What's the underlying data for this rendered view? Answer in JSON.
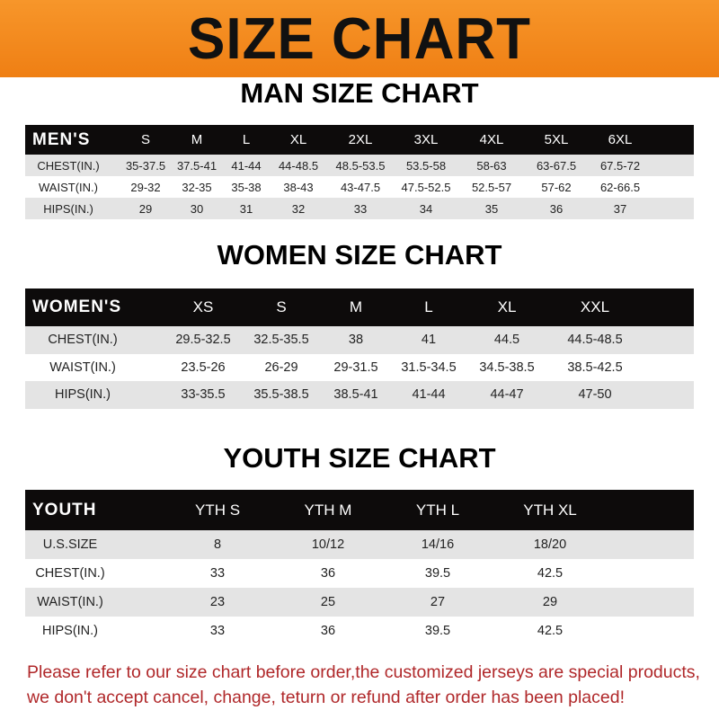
{
  "banner_title": "SIZE CHART",
  "men": {
    "title": "MAN SIZE CHART",
    "header": [
      "MEN'S",
      "S",
      "M",
      "L",
      "XL",
      "2XL",
      "3XL",
      "4XL",
      "5XL",
      "6XL"
    ],
    "rows": [
      [
        "CHEST(IN.)",
        "35-37.5",
        "37.5-41",
        "41-44",
        "44-48.5",
        "48.5-53.5",
        "53.5-58",
        "58-63",
        "63-67.5",
        "67.5-72"
      ],
      [
        "WAIST(IN.)",
        "29-32",
        "32-35",
        "35-38",
        "38-43",
        "43-47.5",
        "47.5-52.5",
        "52.5-57",
        "57-62",
        "62-66.5"
      ],
      [
        "HIPS(IN.)",
        "29",
        "30",
        "31",
        "32",
        "33",
        "34",
        "35",
        "36",
        "37"
      ]
    ]
  },
  "women": {
    "title": "WOMEN SIZE CHART",
    "header": [
      "WOMEN'S",
      "XS",
      "S",
      "M",
      "L",
      "XL",
      "XXL"
    ],
    "rows": [
      [
        "CHEST(IN.)",
        "29.5-32.5",
        "32.5-35.5",
        "38",
        "41",
        "44.5",
        "44.5-48.5"
      ],
      [
        "WAIST(IN.)",
        "23.5-26",
        "26-29",
        "29-31.5",
        "31.5-34.5",
        "34.5-38.5",
        "38.5-42.5"
      ],
      [
        "HIPS(IN.)",
        "33-35.5",
        "35.5-38.5",
        "38.5-41",
        "41-44",
        "44-47",
        "47-50"
      ]
    ]
  },
  "youth": {
    "title": "YOUTH SIZE CHART",
    "header": [
      "YOUTH",
      "YTH S",
      "YTH M",
      "YTH L",
      "YTH XL"
    ],
    "rows": [
      [
        "U.S.SIZE",
        "8",
        "10/12",
        "14/16",
        "18/20"
      ],
      [
        "CHEST(IN.)",
        "33",
        "36",
        "39.5",
        "42.5"
      ],
      [
        "WAIST(IN.)",
        "23",
        "25",
        "27",
        "29"
      ],
      [
        "HIPS(IN.)",
        "33",
        "36",
        "39.5",
        "42.5"
      ]
    ]
  },
  "note": {
    "line1": "Please refer to our size chart before order,the customized jerseys are special products,",
    "line2": "we don't accept cancel, change, teturn or refund after order has been placed!"
  },
  "colors": {
    "banner": "#f28a1e",
    "header_row": "#0d0b0b",
    "stripe": "#e4e4e4",
    "note": "#b0282a"
  }
}
